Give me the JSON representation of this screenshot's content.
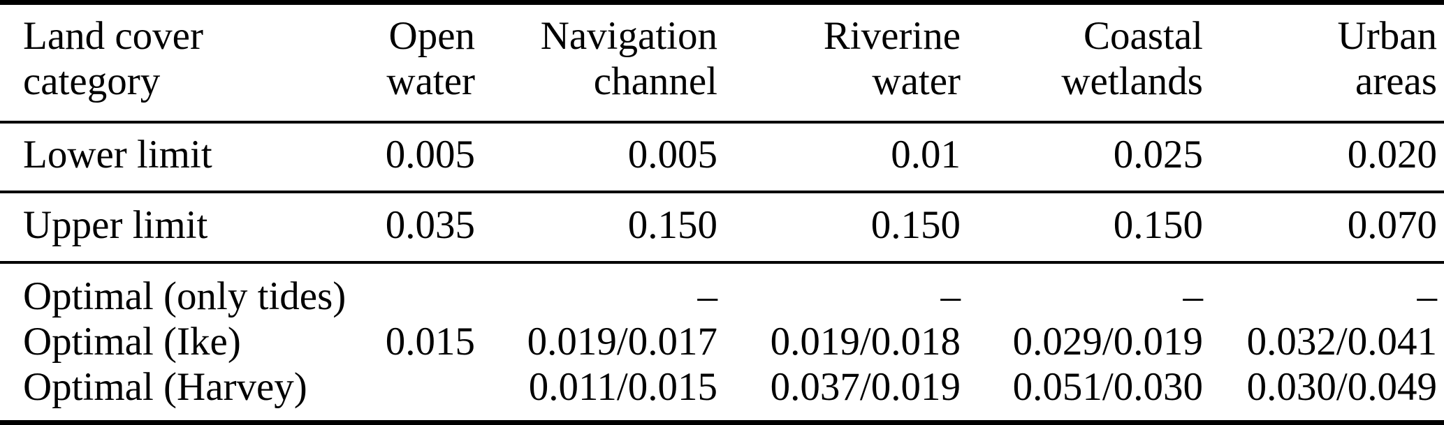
{
  "table": {
    "columns": [
      {
        "id": "land_cover_category",
        "lines": [
          "Land cover",
          "category"
        ]
      },
      {
        "id": "open_water",
        "lines": [
          "Open",
          "water"
        ]
      },
      {
        "id": "navigation_channel",
        "lines": [
          "Navigation",
          "channel"
        ]
      },
      {
        "id": "riverine_water",
        "lines": [
          "Riverine",
          "water"
        ]
      },
      {
        "id": "coastal_wetlands",
        "lines": [
          "Coastal",
          "wetlands"
        ]
      },
      {
        "id": "urban_areas",
        "lines": [
          "Urban",
          "areas"
        ]
      }
    ],
    "rows": {
      "lower_limit": {
        "label": "Lower limit",
        "values": [
          "0.005",
          "0.005",
          "0.01",
          "0.025",
          "0.020"
        ]
      },
      "upper_limit": {
        "label": "Upper limit",
        "values": [
          "0.035",
          "0.150",
          "0.150",
          "0.150",
          "0.070"
        ]
      },
      "optimal": {
        "labels": [
          "Optimal (only tides)",
          "Optimal (Ike)",
          "Optimal (Harvey)"
        ],
        "open_water": [
          "",
          "0.015",
          ""
        ],
        "navigation_channel": [
          "–",
          "0.019/0.017",
          "0.011/0.015"
        ],
        "riverine_water": [
          "–",
          "0.019/0.018",
          "0.037/0.019"
        ],
        "coastal_wetlands": [
          "–",
          "0.029/0.019",
          "0.051/0.030"
        ],
        "urban_areas": [
          "–",
          "0.032/0.041",
          "0.030/0.049"
        ]
      }
    },
    "colors": {
      "text": "#000000",
      "background": "#ffffff",
      "rule": "#000000"
    }
  }
}
